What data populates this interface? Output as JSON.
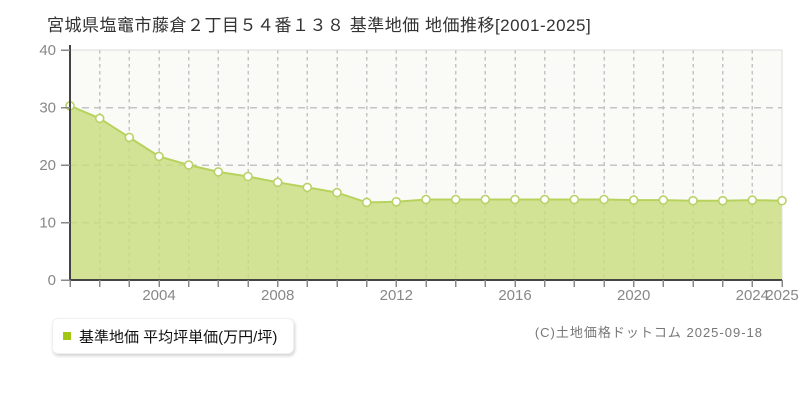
{
  "page": {
    "title": "宮城県塩竈市藤倉２丁目５４番１３８ 基準地価 地価推移[2001-2025]",
    "copyright": "(C)土地価格ドットコム 2025-09-18"
  },
  "legend": {
    "label": "基準地価 平均坪単価(万円/坪)",
    "swatch_color": "#a3c614"
  },
  "chart_data": {
    "type": "area",
    "title": "宮城県塩竈市藤倉２丁目５４番１３８ 基準地価 地価推移[2001-2025]",
    "series_name": "基準地価 平均坪単価(万円/坪)",
    "x": [
      2001,
      2002,
      2003,
      2004,
      2005,
      2006,
      2007,
      2008,
      2009,
      2010,
      2011,
      2012,
      2013,
      2014,
      2015,
      2016,
      2017,
      2018,
      2019,
      2020,
      2021,
      2022,
      2023,
      2024,
      2025
    ],
    "values": [
      30.3,
      28.1,
      24.8,
      21.5,
      20.0,
      18.8,
      18.0,
      17.0,
      16.1,
      15.2,
      13.5,
      13.6,
      14.0,
      14.0,
      14.0,
      14.0,
      14.0,
      14.0,
      14.0,
      13.9,
      13.9,
      13.8,
      13.8,
      13.9,
      13.8
    ],
    "xlabel": "",
    "ylabel": "万円/坪",
    "ylim": [
      0,
      40
    ],
    "y_ticks": [
      0,
      10,
      20,
      30,
      40
    ],
    "x_tick_labels": [
      "2004",
      "2008",
      "2012",
      "2016",
      "2020",
      "2024",
      "2025"
    ],
    "grid": true,
    "legend_position": "bottom-left",
    "colors": {
      "area_fill": "#c9dd7d",
      "line": "#b7d35e",
      "marker_fill": "#ffffff",
      "marker_stroke": "#b9d266",
      "grid": "#c4c4c4",
      "axis": "#444444",
      "tick": "#888888",
      "tick_label": "#888888",
      "border": "#dddddd",
      "plot_bg": "#fafaf7"
    }
  }
}
